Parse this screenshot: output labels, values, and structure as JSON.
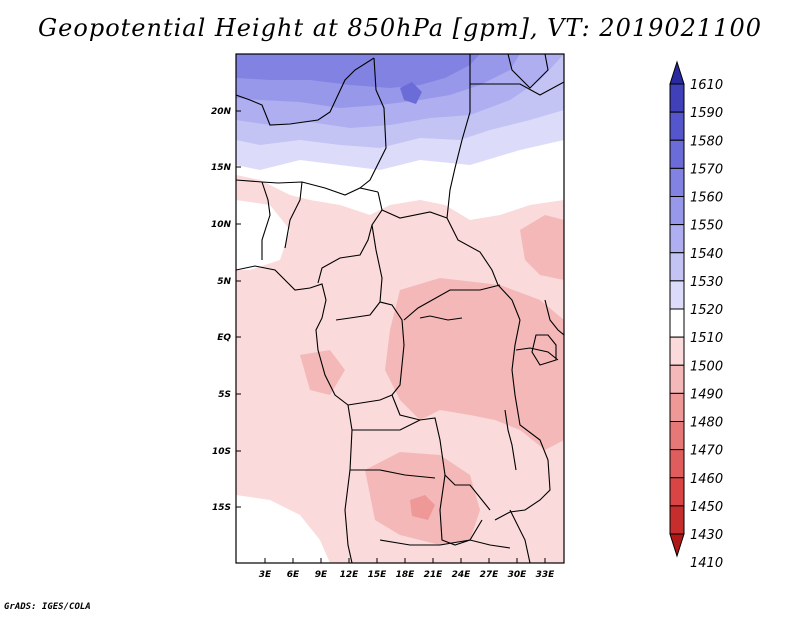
{
  "title": "Geopotential Height at 850hPa [gpm], VT: 2019021100",
  "footer": "GrADS: IGES/COLA",
  "map": {
    "lat_labels": [
      "20N",
      "15N",
      "10N",
      "5N",
      "EQ",
      "5S",
      "10S",
      "15S"
    ],
    "lon_labels": [
      "3E",
      "6E",
      "9E",
      "12E",
      "15E",
      "18E",
      "21E",
      "24E",
      "27E",
      "30E",
      "33E"
    ]
  },
  "colorbar": {
    "levels": [
      "1410",
      "1430",
      "1450",
      "1460",
      "1470",
      "1480",
      "1490",
      "1500",
      "1510",
      "1520",
      "1530",
      "1540",
      "1550",
      "1560",
      "1570",
      "1580",
      "1590",
      "1610"
    ],
    "colors": [
      "#b01818",
      "#c62d2d",
      "#d94545",
      "#e05d5d",
      "#e77878",
      "#ee9898",
      "#f4b8b8",
      "#fadada",
      "#ffffff",
      "#dcdcfa",
      "#c4c4f4",
      "#aeaef0",
      "#9898ea",
      "#8282e2",
      "#6c6cd8",
      "#5656cc",
      "#4040b8",
      "#2a2aa0"
    ]
  }
}
